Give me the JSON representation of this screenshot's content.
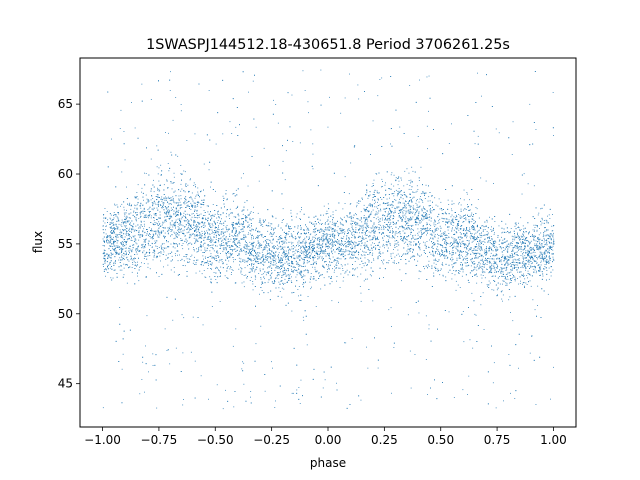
{
  "chart_data": {
    "type": "scatter",
    "title": "1SWASPJ144512.18-430651.8 Period 3706261.25s",
    "xlabel": "phase",
    "ylabel": "flux",
    "xlim": [
      -1.1,
      1.1
    ],
    "ylim": [
      41.9,
      68.3
    ],
    "x_ticks": [
      -1.0,
      -0.75,
      -0.5,
      -0.25,
      0.0,
      0.25,
      0.5,
      0.75,
      1.0
    ],
    "x_tick_labels": [
      "−1.00",
      "−0.75",
      "−0.50",
      "−0.25",
      "0.00",
      "0.25",
      "0.50",
      "0.75",
      "1.00"
    ],
    "y_ticks": [
      45,
      50,
      55,
      60,
      65
    ],
    "y_tick_labels": [
      "45",
      "50",
      "55",
      "60",
      "65"
    ],
    "grid": false,
    "legend": "none",
    "marker_color": "#1f77b4",
    "series": [
      {
        "profile": {
          "phase": [
            -1.0,
            -0.9,
            -0.8,
            -0.7,
            -0.6,
            -0.5,
            -0.45,
            -0.4,
            -0.3,
            -0.2,
            -0.1,
            0.0,
            0.1,
            0.2,
            0.3,
            0.4,
            0.5,
            0.55,
            0.6,
            0.7,
            0.8,
            0.9,
            1.0
          ],
          "median_flux": [
            55.0,
            55.3,
            56.3,
            57.0,
            56.5,
            55.2,
            55.4,
            55.5,
            54.5,
            54.0,
            54.5,
            55.0,
            55.3,
            56.3,
            57.0,
            56.5,
            55.2,
            55.4,
            55.5,
            54.5,
            54.0,
            54.5,
            55.0
          ],
          "band_low": [
            51.5,
            51.5,
            51.5,
            52.0,
            52.0,
            51.0,
            51.0,
            51.5,
            51.0,
            50.0,
            51.0,
            51.5,
            51.5,
            51.5,
            52.0,
            52.0,
            51.0,
            51.0,
            51.5,
            51.0,
            50.0,
            51.0,
            51.5
          ],
          "band_high": [
            58.0,
            59.0,
            61.5,
            62.0,
            61.5,
            59.5,
            60.0,
            60.0,
            58.0,
            57.5,
            58.0,
            58.0,
            59.0,
            61.5,
            62.0,
            61.5,
            59.5,
            60.0,
            60.0,
            58.0,
            57.5,
            58.0,
            58.0
          ],
          "min_flux": 43.2,
          "max_flux": 67.5
        }
      }
    ]
  }
}
